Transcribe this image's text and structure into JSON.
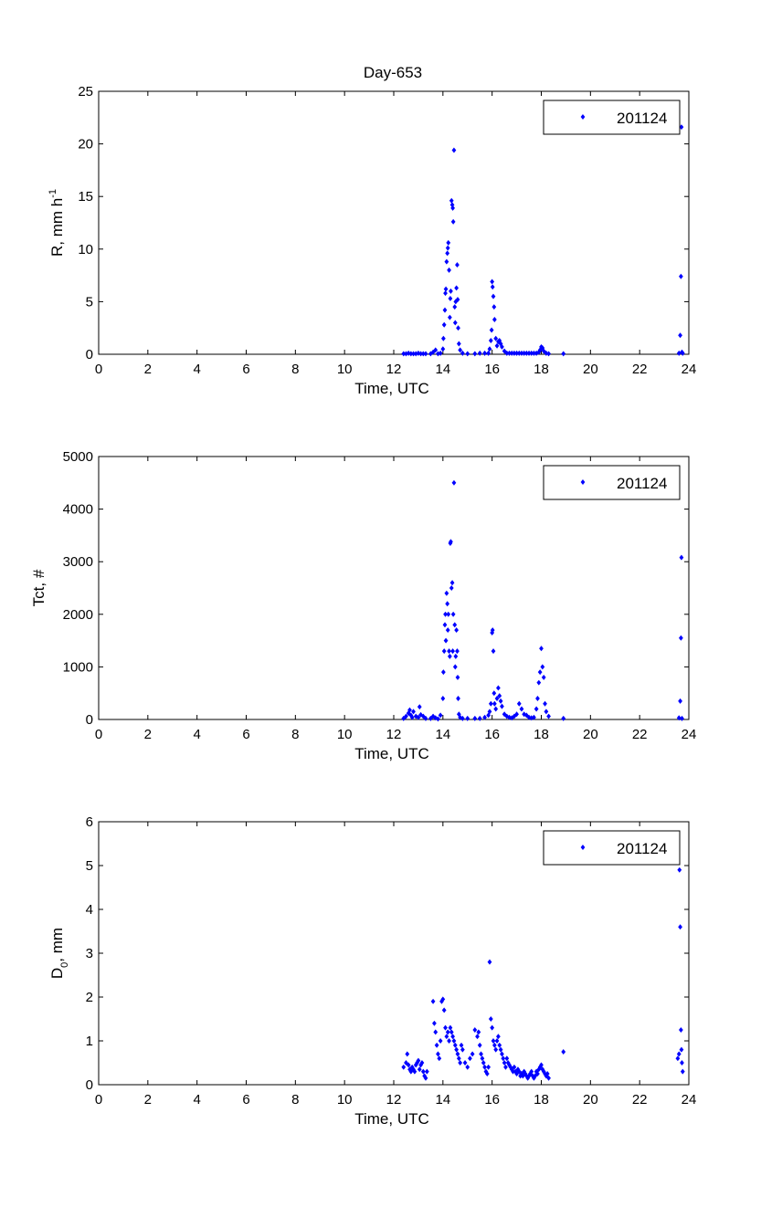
{
  "figure_title": "Day-653",
  "colors": {
    "marker": "#0000ff",
    "axes": "#000000",
    "background": "#ffffff"
  },
  "chart_data": [
    {
      "type": "scatter",
      "title": "Day-653",
      "xlabel": "Time, UTC",
      "ylabel": "R, mm h",
      "ylabel_exponent": "-1",
      "xlim": [
        0,
        24
      ],
      "ylim": [
        0,
        25
      ],
      "xticks": [
        0,
        2,
        4,
        6,
        8,
        10,
        12,
        14,
        16,
        18,
        20,
        22,
        24
      ],
      "yticks": [
        0,
        5,
        10,
        15,
        20,
        25
      ],
      "legend": "201124",
      "legend_position": "top-right",
      "grid": false,
      "series": [
        {
          "name": "201124",
          "x": [
            12.4,
            12.5,
            12.6,
            12.7,
            12.8,
            12.9,
            13.0,
            13.1,
            13.2,
            13.3,
            13.5,
            13.6,
            13.7,
            13.8,
            13.9,
            14.0,
            14.02,
            14.05,
            14.08,
            14.1,
            14.12,
            14.15,
            14.18,
            14.2,
            14.22,
            14.25,
            14.28,
            14.3,
            14.32,
            14.35,
            14.38,
            14.4,
            14.42,
            14.45,
            14.48,
            14.5,
            14.52,
            14.55,
            14.58,
            14.6,
            14.62,
            14.65,
            14.7,
            14.8,
            15.0,
            15.3,
            15.5,
            15.7,
            15.85,
            15.9,
            15.95,
            15.98,
            16.0,
            16.02,
            16.05,
            16.08,
            16.1,
            16.15,
            16.2,
            16.25,
            16.3,
            16.35,
            16.4,
            16.5,
            16.6,
            16.7,
            16.8,
            16.9,
            17.0,
            17.1,
            17.2,
            17.3,
            17.4,
            17.5,
            17.6,
            17.7,
            17.8,
            17.9,
            17.95,
            18.0,
            18.05,
            18.1,
            18.2,
            18.3,
            18.9,
            23.6,
            23.65,
            23.68,
            23.7,
            23.72,
            23.75
          ],
          "y": [
            0.05,
            0.05,
            0.1,
            0.05,
            0.05,
            0.05,
            0.1,
            0.05,
            0.05,
            0.05,
            0.05,
            0.2,
            0.4,
            0.05,
            0.1,
            0.5,
            1.5,
            2.8,
            4.2,
            5.8,
            6.2,
            8.8,
            9.6,
            10.1,
            10.6,
            8.0,
            3.5,
            5.3,
            6.0,
            14.6,
            14.2,
            13.9,
            12.6,
            19.4,
            4.5,
            3.0,
            5.0,
            6.3,
            8.5,
            5.2,
            2.5,
            1.0,
            0.4,
            0.1,
            0.05,
            0.05,
            0.1,
            0.1,
            0.1,
            0.5,
            1.3,
            2.3,
            6.9,
            6.4,
            5.5,
            4.5,
            3.3,
            1.5,
            0.8,
            1.2,
            1.3,
            1.0,
            0.7,
            0.3,
            0.1,
            0.1,
            0.1,
            0.1,
            0.1,
            0.1,
            0.1,
            0.1,
            0.1,
            0.1,
            0.1,
            0.1,
            0.1,
            0.2,
            0.4,
            0.7,
            0.6,
            0.3,
            0.1,
            0.05,
            0.05,
            0.1,
            1.8,
            7.4,
            21.6,
            0.2,
            0.1
          ]
        }
      ]
    },
    {
      "type": "scatter",
      "xlabel": "Time, UTC",
      "ylabel": "Tct, #",
      "xlim": [
        0,
        24
      ],
      "ylim": [
        0,
        5000
      ],
      "xticks": [
        0,
        2,
        4,
        6,
        8,
        10,
        12,
        14,
        16,
        18,
        20,
        22,
        24
      ],
      "yticks": [
        0,
        1000,
        2000,
        3000,
        4000,
        5000
      ],
      "legend": "201124",
      "legend_position": "top-right",
      "grid": false,
      "series": [
        {
          "name": "201124",
          "x": [
            12.4,
            12.5,
            12.6,
            12.65,
            12.7,
            12.75,
            12.8,
            12.9,
            13.0,
            13.05,
            13.1,
            13.2,
            13.3,
            13.5,
            13.6,
            13.7,
            13.8,
            13.9,
            14.0,
            14.02,
            14.05,
            14.08,
            14.1,
            14.12,
            14.15,
            14.18,
            14.2,
            14.22,
            14.25,
            14.28,
            14.3,
            14.32,
            14.35,
            14.38,
            14.4,
            14.42,
            14.45,
            14.48,
            14.5,
            14.52,
            14.55,
            14.58,
            14.6,
            14.62,
            14.65,
            14.7,
            14.8,
            15.0,
            15.3,
            15.5,
            15.7,
            15.85,
            15.9,
            15.95,
            16.0,
            16.02,
            16.05,
            16.08,
            16.1,
            16.15,
            16.2,
            16.25,
            16.3,
            16.35,
            16.4,
            16.5,
            16.6,
            16.7,
            16.8,
            16.9,
            17.0,
            17.1,
            17.2,
            17.3,
            17.4,
            17.5,
            17.6,
            17.7,
            17.8,
            17.85,
            17.9,
            17.95,
            18.0,
            18.05,
            18.1,
            18.15,
            18.2,
            18.3,
            18.9,
            23.6,
            23.65,
            23.68,
            23.7,
            23.72
          ],
          "y": [
            20,
            60,
            120,
            180,
            80,
            40,
            150,
            60,
            40,
            240,
            90,
            60,
            20,
            20,
            60,
            30,
            10,
            80,
            400,
            900,
            1300,
            1800,
            2000,
            1500,
            2400,
            2200,
            1700,
            2000,
            1300,
            1200,
            3350,
            3380,
            2500,
            2600,
            1300,
            2000,
            4500,
            1800,
            1000,
            1200,
            1700,
            1300,
            800,
            400,
            100,
            40,
            20,
            20,
            20,
            20,
            40,
            80,
            150,
            300,
            1650,
            1700,
            1300,
            500,
            300,
            200,
            400,
            600,
            450,
            350,
            250,
            100,
            60,
            40,
            30,
            60,
            100,
            300,
            200,
            100,
            80,
            40,
            30,
            40,
            200,
            400,
            700,
            900,
            1350,
            1000,
            800,
            300,
            150,
            60,
            20,
            30,
            350,
            1550,
            3080,
            20
          ]
        }
      ]
    },
    {
      "type": "scatter",
      "xlabel": "Time, UTC",
      "ylabel": "D",
      "ylabel_subscript": "0",
      "ylabel_suffix": ", mm",
      "xlim": [
        0,
        24
      ],
      "ylim": [
        0,
        6
      ],
      "xticks": [
        0,
        2,
        4,
        6,
        8,
        10,
        12,
        14,
        16,
        18,
        20,
        22,
        24
      ],
      "yticks": [
        0,
        1,
        2,
        3,
        4,
        5,
        6
      ],
      "legend": "201124",
      "legend_position": "top-right",
      "grid": false,
      "series": [
        {
          "name": "201124",
          "x": [
            12.4,
            12.5,
            12.55,
            12.6,
            12.65,
            12.7,
            12.75,
            12.8,
            12.85,
            12.9,
            12.95,
            13.0,
            13.05,
            13.1,
            13.15,
            13.2,
            13.25,
            13.3,
            13.35,
            13.6,
            13.65,
            13.7,
            13.75,
            13.8,
            13.85,
            13.9,
            13.95,
            14.0,
            14.05,
            14.1,
            14.15,
            14.2,
            14.25,
            14.3,
            14.35,
            14.4,
            14.45,
            14.5,
            14.55,
            14.6,
            14.65,
            14.7,
            14.75,
            14.8,
            14.9,
            15.0,
            15.1,
            15.2,
            15.3,
            15.4,
            15.45,
            15.5,
            15.55,
            15.6,
            15.65,
            15.7,
            15.75,
            15.8,
            15.85,
            15.9,
            15.95,
            16.0,
            16.05,
            16.1,
            16.15,
            16.2,
            16.25,
            16.3,
            16.35,
            16.4,
            16.45,
            16.5,
            16.55,
            16.6,
            16.65,
            16.7,
            16.75,
            16.8,
            16.85,
            16.9,
            16.95,
            17.0,
            17.05,
            17.1,
            17.15,
            17.2,
            17.25,
            17.3,
            17.35,
            17.4,
            17.45,
            17.5,
            17.55,
            17.6,
            17.65,
            17.7,
            17.75,
            17.8,
            17.85,
            17.9,
            17.95,
            18.0,
            18.05,
            18.1,
            18.15,
            18.2,
            18.25,
            18.3,
            18.9,
            23.55,
            23.6,
            23.62,
            23.65,
            23.68,
            23.7,
            23.72,
            23.75
          ],
          "y": [
            0.4,
            0.5,
            0.7,
            0.45,
            0.35,
            0.3,
            0.4,
            0.35,
            0.3,
            0.45,
            0.5,
            0.55,
            0.35,
            0.45,
            0.5,
            0.3,
            0.2,
            0.15,
            0.3,
            1.9,
            1.4,
            1.2,
            0.9,
            0.7,
            0.6,
            1.0,
            1.9,
            1.95,
            1.7,
            1.3,
            1.1,
            1.2,
            1.0,
            1.3,
            1.2,
            1.1,
            1.0,
            0.9,
            0.8,
            0.7,
            0.6,
            0.5,
            0.9,
            0.8,
            0.5,
            0.4,
            0.6,
            0.7,
            1.25,
            1.1,
            1.2,
            0.9,
            0.7,
            0.6,
            0.5,
            0.4,
            0.3,
            0.25,
            0.4,
            2.8,
            1.5,
            1.3,
            1.0,
            0.9,
            0.8,
            1.0,
            1.1,
            0.9,
            0.8,
            0.7,
            0.6,
            0.5,
            0.4,
            0.6,
            0.5,
            0.45,
            0.4,
            0.35,
            0.3,
            0.4,
            0.3,
            0.25,
            0.35,
            0.3,
            0.2,
            0.25,
            0.2,
            0.3,
            0.25,
            0.2,
            0.15,
            0.2,
            0.25,
            0.3,
            0.2,
            0.15,
            0.2,
            0.3,
            0.25,
            0.35,
            0.4,
            0.45,
            0.35,
            0.3,
            0.25,
            0.2,
            0.25,
            0.15,
            0.75,
            0.6,
            0.7,
            4.9,
            3.6,
            1.25,
            0.8,
            0.5,
            0.3
          ]
        }
      ]
    }
  ]
}
